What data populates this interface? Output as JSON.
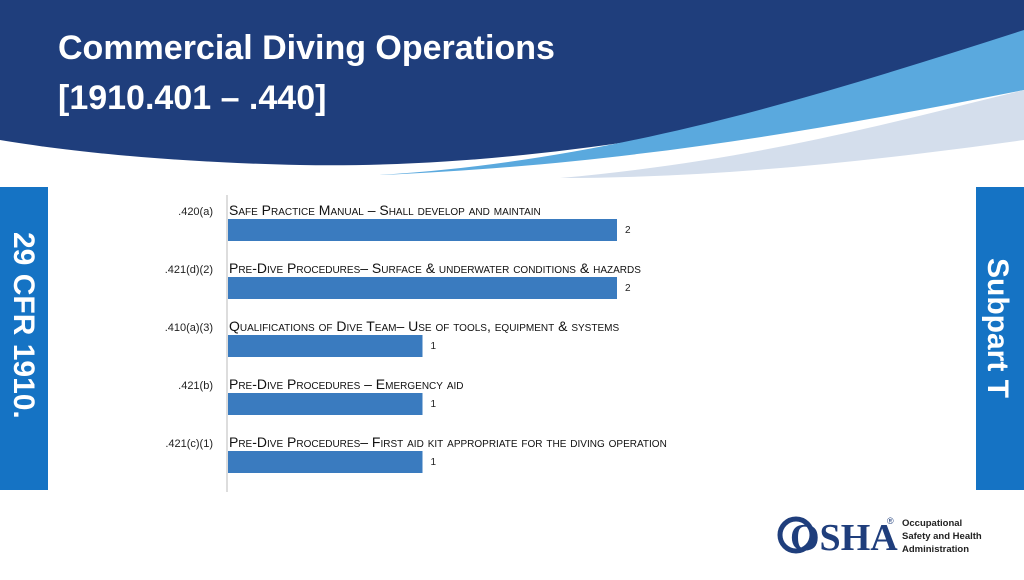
{
  "header": {
    "title_lines": [
      "Commercial Diving Operations",
      "[1910.401 – .440]"
    ]
  },
  "side_left": "29 CFR 1910.",
  "side_right": "Subpart T",
  "chart_data": {
    "type": "hbar",
    "categories": [
      ".420(a)",
      ".421(d)(2)",
      ".410(a)(3)",
      ".421(b)",
      ".421(c)(1)"
    ],
    "descriptions": [
      "Safe Practice Manual – Shall develop and maintain",
      "Pre-Dive Procedures– Surface & underwater conditions & hazards",
      "Qualifications of Dive Team– Use of tools, equipment & systems",
      "Pre-Dive Procedures – Emergency aid",
      "Pre-Dive Procedures– First aid kit appropriate for the diving operation"
    ],
    "values": [
      2,
      2,
      1,
      1,
      1
    ],
    "color": "#3a7bbf"
  },
  "logo": {
    "mark": "OSHA",
    "registered": "®",
    "lines": [
      "Occupational",
      "Safety and Health",
      "Administration"
    ]
  }
}
